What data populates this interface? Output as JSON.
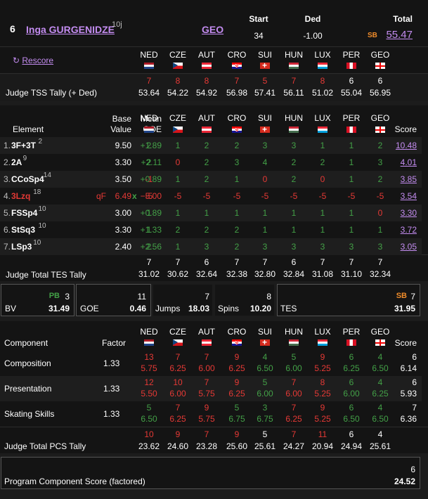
{
  "skater": {
    "rank": "6",
    "name": "Inga GURGENIDZE",
    "age": "10j",
    "nation": "GEO"
  },
  "header": {
    "start_label": "Start",
    "start_value": "34",
    "ded_label": "Ded",
    "ded_value": "-1.00",
    "total_label": "Total",
    "sb_label": "SB",
    "total_value": "55.47"
  },
  "rescore_label": "Rescore",
  "judges": [
    "NED",
    "CZE",
    "AUT",
    "CRO",
    "SUI",
    "HUN",
    "LUX",
    "PER",
    "GEO"
  ],
  "tss": {
    "label": "Judge TSS Tally (+ Ded)",
    "ranks": [
      "7",
      "8",
      "8",
      "7",
      "5",
      "7",
      "8",
      "6",
      "6"
    ],
    "values": [
      "53.64",
      "54.22",
      "54.92",
      "56.98",
      "57.41",
      "56.11",
      "51.02",
      "55.04",
      "56.95"
    ]
  },
  "elements": {
    "col_element": "Element",
    "col_base1": "Base",
    "col_base2": "Value",
    "col_goe1": "Mean",
    "col_goe2": "GOE",
    "col_score": "Score",
    "rows": [
      {
        "num": "1.",
        "code": "3F+3T",
        "sup": "2",
        "sup_color": "gray",
        "extra": "",
        "base": "9.50",
        "goe": "+1.89",
        "goe_color": "green",
        "marks": [
          "2",
          "1",
          "2",
          "2",
          "3",
          "3",
          "1",
          "1",
          "2"
        ],
        "score": "10.48"
      },
      {
        "num": "2.",
        "code": "2A",
        "sup": "9",
        "sup_color": "gray",
        "extra": "",
        "base": "3.30",
        "goe": "+2.11",
        "goe_color": "green",
        "marks": [
          "2",
          "0",
          "2",
          "3",
          "4",
          "2",
          "2",
          "1",
          "3"
        ],
        "score": "4.01"
      },
      {
        "num": "3.",
        "code": "CCoSp4",
        "sup": "14",
        "sup_color": "gray",
        "extra": "",
        "base": "3.50",
        "goe": "+0.89",
        "goe_color": "green",
        "marks": [
          "-1",
          "1",
          "2",
          "1",
          "0",
          "2",
          "0",
          "1",
          "2"
        ],
        "score": "3.85"
      },
      {
        "num": "4.",
        "code": "3Lzq",
        "sup": "18",
        "sup_color": "gray",
        "extra": "qF",
        "base": "6.49",
        "goe": "−5.00",
        "goe_color": "red",
        "marks": [
          "-5",
          "-5",
          "-5",
          "-5",
          "-5",
          "-5",
          "-5",
          "-5",
          "-5"
        ],
        "score": "3.54"
      },
      {
        "num": "5.",
        "code": "FSSp4",
        "sup": "10",
        "sup_color": "gray",
        "extra": "",
        "base": "3.00",
        "goe": "+0.89",
        "goe_color": "green",
        "marks": [
          "1",
          "1",
          "1",
          "1",
          "1",
          "1",
          "1",
          "1",
          "0"
        ],
        "score": "3.30"
      },
      {
        "num": "6.",
        "code": "StSq3",
        "sup": "10",
        "sup_color": "gray",
        "extra": "",
        "base": "3.30",
        "goe": "+1.33",
        "goe_color": "green",
        "marks": [
          "1",
          "2",
          "2",
          "2",
          "1",
          "1",
          "1",
          "1",
          "1"
        ],
        "score": "3.72"
      },
      {
        "num": "7.",
        "code": "LSp3",
        "sup": "10",
        "sup_color": "gray",
        "extra": "",
        "base": "2.40",
        "goe": "+2.56",
        "goe_color": "green",
        "marks": [
          "2",
          "1",
          "3",
          "2",
          "3",
          "3",
          "3",
          "3",
          "3"
        ],
        "score": "3.05"
      }
    ]
  },
  "tes_tally": {
    "label": "Judge Total TES Tally",
    "ranks": [
      "7",
      "7",
      "6",
      "7",
      "7",
      "6",
      "7",
      "7",
      "7"
    ],
    "values": [
      "31.02",
      "30.62",
      "32.64",
      "32.38",
      "32.80",
      "32.84",
      "31.08",
      "31.10",
      "32.34"
    ]
  },
  "summary": {
    "bv_label": "BV",
    "bv_pb": "PB",
    "bv_rank": "3",
    "bv_value": "31.49",
    "goe_label": "GOE",
    "goe_rank": "11",
    "goe_value": "0.46",
    "jumps_label": "Jumps",
    "jumps_rank": "7",
    "jumps_value": "18.03",
    "spins_label": "Spins",
    "spins_rank": "8",
    "spins_value": "10.20",
    "tes_label": "TES",
    "tes_sb": "SB",
    "tes_rank": "7",
    "tes_value": "31.95"
  },
  "components": {
    "col_component": "Component",
    "col_factor": "Factor",
    "col_score": "Score",
    "rows": [
      {
        "name": "Composition",
        "factor": "1.33",
        "ranks": [
          "13",
          "7",
          "7",
          "9",
          "4",
          "5",
          "9",
          "6",
          "4"
        ],
        "values": [
          "5.75",
          "6.25",
          "6.00",
          "6.25",
          "6.50",
          "6.00",
          "5.25",
          "6.25",
          "6.50"
        ],
        "score_rank": "6",
        "score": "6.14"
      },
      {
        "name": "Presentation",
        "factor": "1.33",
        "ranks": [
          "12",
          "10",
          "7",
          "9",
          "5",
          "7",
          "8",
          "6",
          "4"
        ],
        "values": [
          "5.50",
          "6.00",
          "5.75",
          "6.25",
          "6.00",
          "6.00",
          "5.25",
          "6.00",
          "6.25"
        ],
        "score_rank": "6",
        "score": "5.93"
      },
      {
        "name": "Skating Skills",
        "factor": "1.33",
        "ranks": [
          "5",
          "7",
          "9",
          "5",
          "3",
          "7",
          "9",
          "6",
          "4"
        ],
        "values": [
          "6.50",
          "6.25",
          "5.75",
          "6.75",
          "6.75",
          "6.25",
          "5.25",
          "6.50",
          "6.50"
        ],
        "score_rank": "7",
        "score": "6.36"
      }
    ]
  },
  "pcs_tally": {
    "label": "Judge Total PCS Tally",
    "ranks": [
      "10",
      "9",
      "7",
      "9",
      "5",
      "7",
      "11",
      "6",
      "4"
    ],
    "values": [
      "23.62",
      "24.60",
      "23.28",
      "25.60",
      "25.61",
      "24.27",
      "20.94",
      "24.94",
      "25.61"
    ]
  },
  "pcs_factored": {
    "label": "Program Component Score (factored)",
    "rank": "6",
    "value": "24.52"
  }
}
